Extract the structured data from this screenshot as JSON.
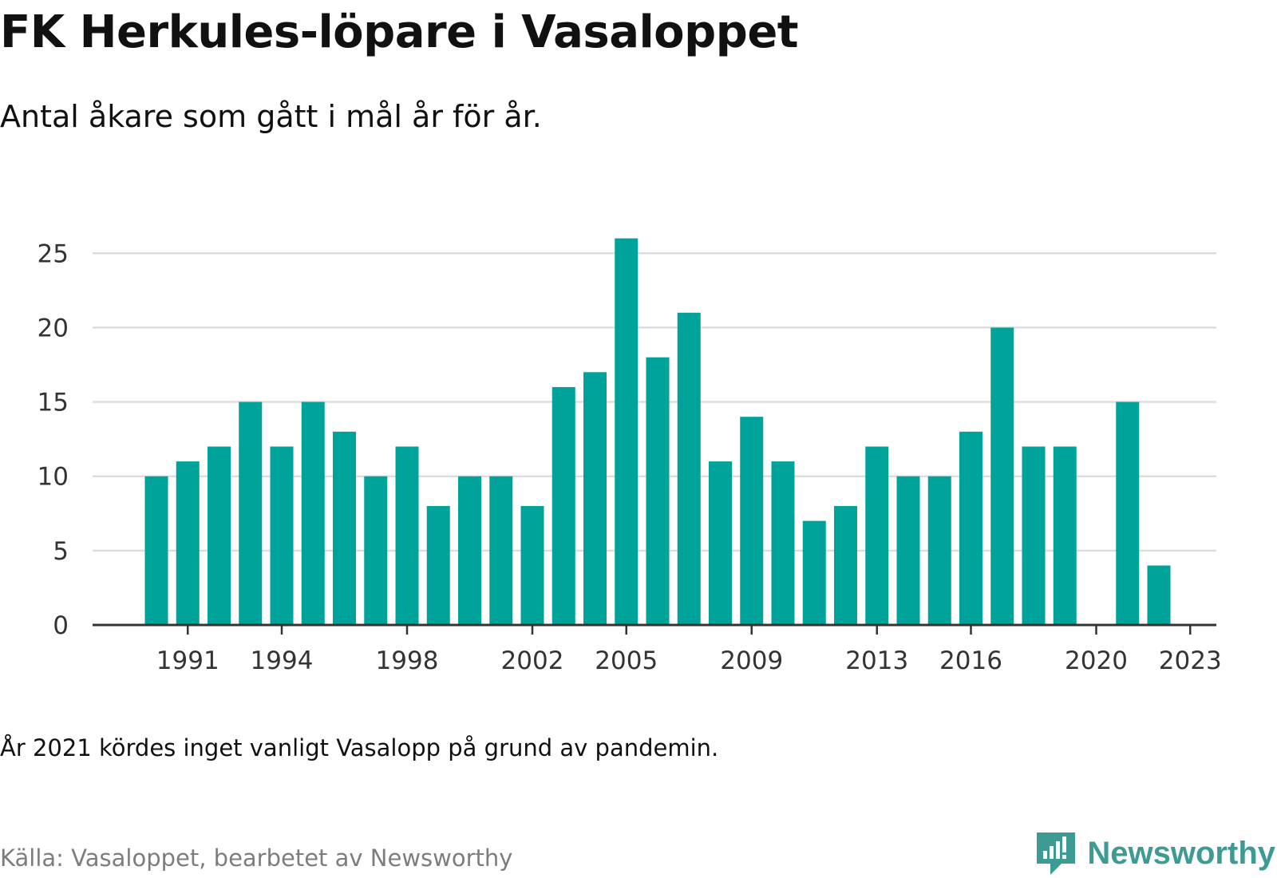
{
  "header": {
    "title": "FK Herkules-löpare i Vasaloppet",
    "subtitle": "Antal åkare som gått i mål år för år."
  },
  "footer": {
    "note": "År 2021 kördes inget vanligt Vasalopp på grund av pandemin.",
    "source": "Källa: Vasaloppet, bearbetet av Newsworthy",
    "brand": "Newsworthy"
  },
  "colors": {
    "bar": "#00a39a",
    "brand": "#3d9b93",
    "gridline": "#dddddd",
    "axis": "#333333"
  },
  "chart_data": {
    "type": "bar",
    "title": "FK Herkules-löpare i Vasaloppet",
    "subtitle": "Antal åkare som gått i mål år för år.",
    "xlabel": "",
    "ylabel": "",
    "ylim": [
      0,
      27
    ],
    "yticks": [
      0,
      5,
      10,
      15,
      20,
      25
    ],
    "x_tick_labels": [
      1991,
      1994,
      1998,
      2002,
      2005,
      2009,
      2013,
      2016,
      2020,
      2023
    ],
    "grid": true,
    "legend": "none",
    "categories": [
      1990,
      1991,
      1992,
      1993,
      1994,
      1995,
      1996,
      1997,
      1998,
      1999,
      2000,
      2001,
      2002,
      2003,
      2004,
      2005,
      2006,
      2007,
      2008,
      2009,
      2010,
      2011,
      2012,
      2013,
      2014,
      2015,
      2016,
      2017,
      2018,
      2019,
      2020,
      2021,
      2022,
      2023
    ],
    "values": [
      10,
      11,
      12,
      15,
      12,
      15,
      13,
      10,
      12,
      8,
      10,
      10,
      8,
      16,
      17,
      26,
      18,
      21,
      11,
      14,
      11,
      7,
      8,
      12,
      10,
      10,
      13,
      20,
      12,
      12,
      null,
      15,
      4,
      null
    ]
  }
}
